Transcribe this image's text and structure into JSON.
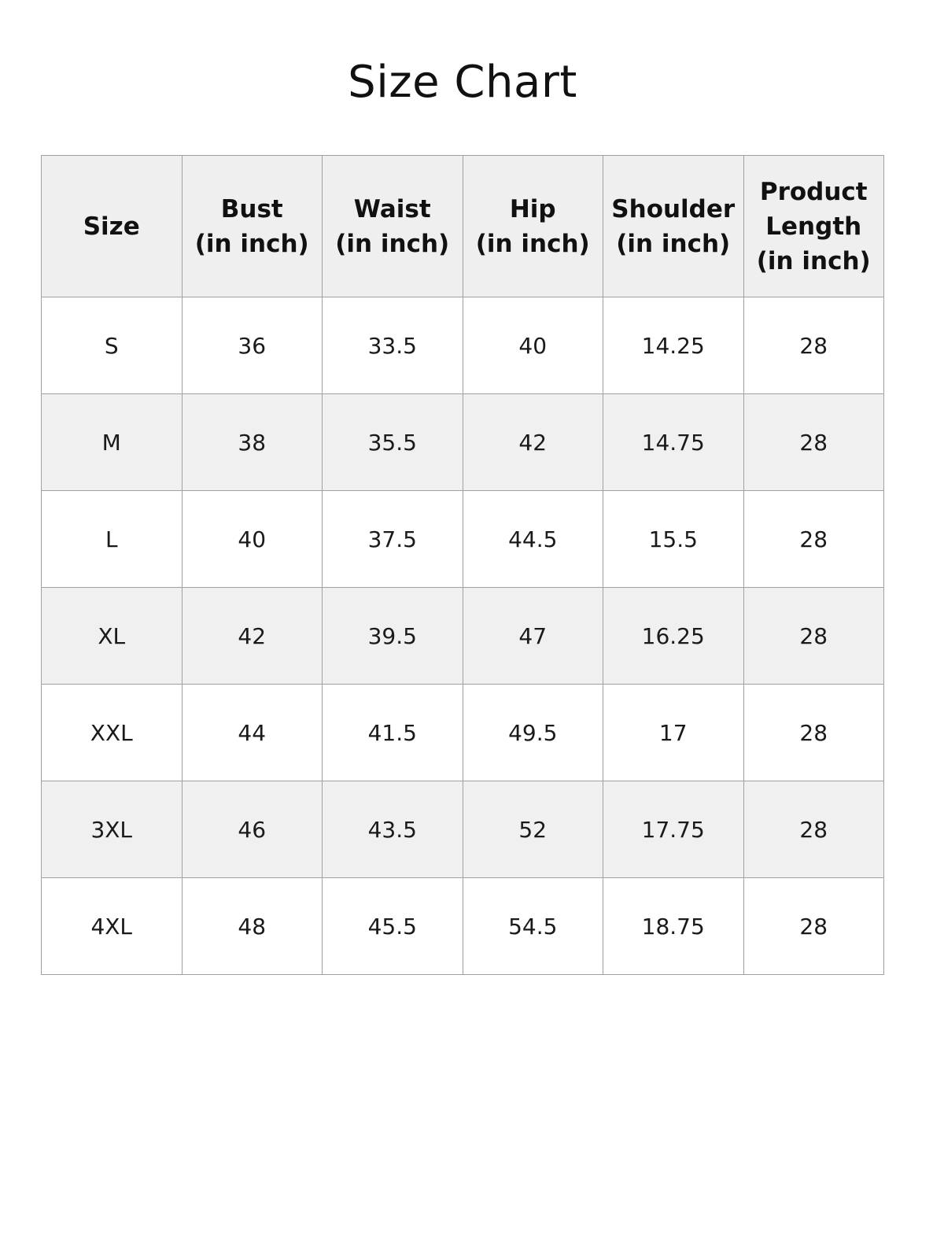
{
  "title": "Size Chart",
  "colors": {
    "header_bg": "#efefef",
    "alt_row_bg": "#f0f0f0",
    "border": "#a0a0a0",
    "text": "#111111"
  },
  "headers": [
    {
      "lines": [
        "Size"
      ]
    },
    {
      "lines": [
        "Bust",
        "(in inch)"
      ]
    },
    {
      "lines": [
        "Waist",
        "(in inch)"
      ]
    },
    {
      "lines": [
        "Hip",
        "(in inch)"
      ]
    },
    {
      "lines": [
        "Shoulder",
        "(in inch)"
      ]
    },
    {
      "lines": [
        "Product",
        "Length",
        "(in inch)"
      ]
    }
  ],
  "rows": [
    [
      "S",
      "36",
      "33.5",
      "40",
      "14.25",
      "28"
    ],
    [
      "M",
      "38",
      "35.5",
      "42",
      "14.75",
      "28"
    ],
    [
      "L",
      "40",
      "37.5",
      "44.5",
      "15.5",
      "28"
    ],
    [
      "XL",
      "42",
      "39.5",
      "47",
      "16.25",
      "28"
    ],
    [
      "XXL",
      "44",
      "41.5",
      "49.5",
      "17",
      "28"
    ],
    [
      "3XL",
      "46",
      "43.5",
      "52",
      "17.75",
      "28"
    ],
    [
      "4XL",
      "48",
      "45.5",
      "54.5",
      "18.75",
      "28"
    ]
  ]
}
